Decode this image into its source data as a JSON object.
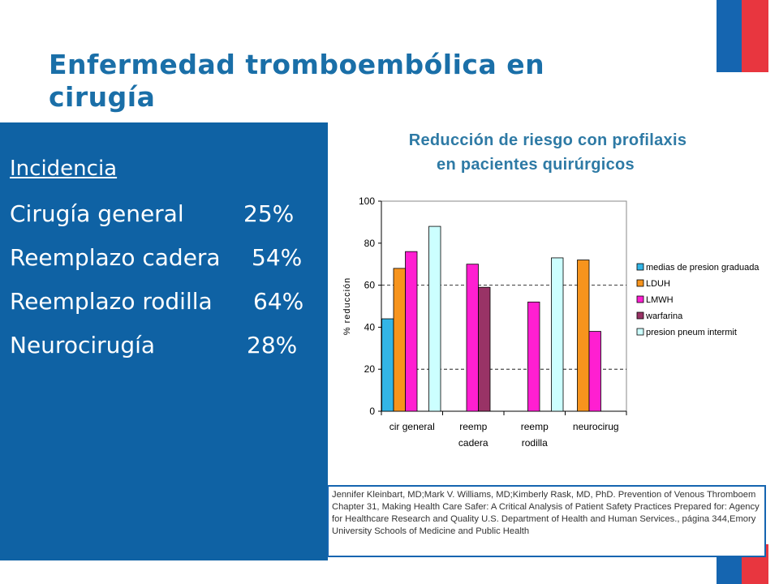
{
  "title": "Enfermedad tromboembólica en cirugía",
  "incidence": {
    "heading": "Incidencia",
    "rows": [
      {
        "label": "Cirugía general",
        "value": "25%"
      },
      {
        "label": "Reemplazo cadera",
        "value": "54%"
      },
      {
        "label": "Reemplazo rodilla",
        "value": "64%"
      },
      {
        "label": "Neurocirugía",
        "value": "28%"
      }
    ]
  },
  "chart_title_lines": [
    "Reducción de riesgo con profilaxis",
    "en pacientes quirúrgicos"
  ],
  "chart_data": {
    "type": "bar",
    "title": "Reducción de riesgo con profilaxis en pacientes quirúrgicos",
    "ylabel": "% reducción",
    "ylim": [
      0,
      100
    ],
    "yticks": [
      0,
      20,
      40,
      60,
      80,
      100
    ],
    "categories": [
      [
        "cir general"
      ],
      [
        "reemp",
        "cadera"
      ],
      [
        "reemp",
        "rodilla"
      ],
      [
        "neurocirug"
      ]
    ],
    "series": [
      {
        "name": "medias de presion graduada",
        "color": "#33b5e6",
        "values": [
          44,
          null,
          null,
          null
        ]
      },
      {
        "name": "LDUH",
        "color": "#f7941d",
        "values": [
          68,
          null,
          null,
          72
        ]
      },
      {
        "name": "LMWH",
        "color": "#ff1fd1",
        "values": [
          76,
          70,
          52,
          38
        ]
      },
      {
        "name": "warfarina",
        "color": "#993366",
        "values": [
          null,
          59,
          null,
          null
        ]
      },
      {
        "name": "presion pneum intermit",
        "color": "#ccffff",
        "values": [
          88,
          null,
          73,
          null
        ]
      }
    ],
    "grid": "dashed lines at 20, 60",
    "legend": "right"
  },
  "reference": "Jennifer Kleinbart, MD;Mark V. Williams, MD;Kimberly Rask, MD, PhD. Prevention of Venous Thromboem Chapter 31, Making Health Care Safer: A Critical Analysis of Patient Safety Practices Prepared for: Agency for Healthcare Research and Quality U.S. Department of Health and Human Services., página 344,Emory University Schools of Medicine and Public Health"
}
